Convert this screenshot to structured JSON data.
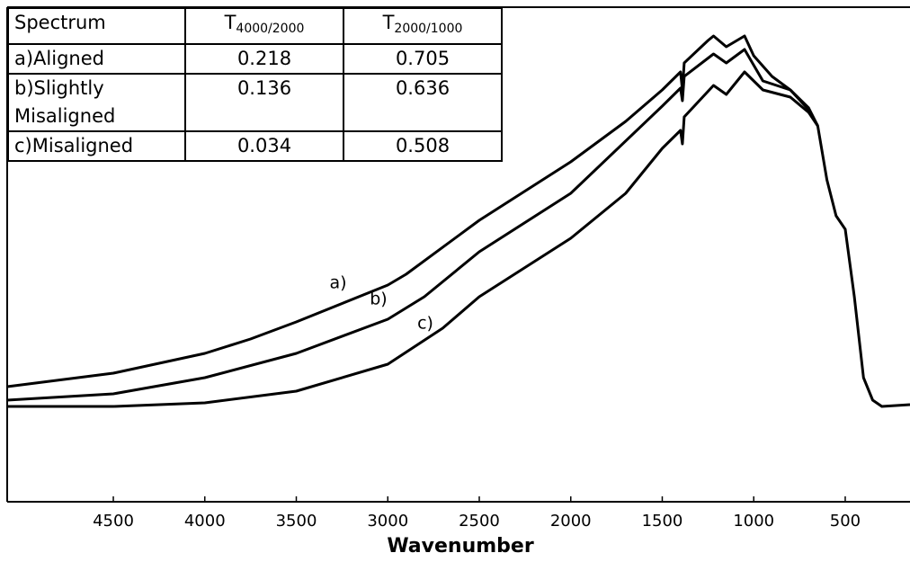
{
  "chart_data": {
    "type": "line",
    "x_label": "Wavenumber",
    "xlim": [
      5080,
      146
    ],
    "xticks": [
      4500,
      4000,
      3500,
      3000,
      2500,
      2000,
      1500,
      1000,
      500
    ],
    "ylim": [
      0,
      110
    ],
    "color": "#000000",
    "series": [
      {
        "name": "a)",
        "x": [
          5080,
          4500,
          4000,
          3750,
          3500,
          3000,
          2900,
          2500,
          2000,
          1700,
          1500,
          1400,
          1390,
          1380,
          1250,
          1220,
          1150,
          1050,
          1000,
          900,
          800,
          700,
          650,
          600,
          550,
          500,
          450,
          400,
          350,
          300,
          146
        ],
        "values": [
          25.6,
          28.6,
          33,
          36.2,
          40,
          48.2,
          50.6,
          62.6,
          75.6,
          84.6,
          91.6,
          95.6,
          91.6,
          97.6,
          102.6,
          103.6,
          101.2,
          103.6,
          99.2,
          94.6,
          91.6,
          87.6,
          83.6,
          71.6,
          63.6,
          60.6,
          45.6,
          27.6,
          22.6,
          21.2,
          21.6
        ]
      },
      {
        "name": "b)",
        "x": [
          5080,
          4500,
          4000,
          3500,
          3000,
          2800,
          2500,
          2000,
          1500,
          1400,
          1390,
          1380,
          1220,
          1150,
          1050,
          950,
          800,
          700,
          650
        ],
        "values": [
          22.6,
          24,
          27.6,
          33,
          40.6,
          45.6,
          55.6,
          68.6,
          88,
          92,
          89.2,
          94.6,
          99.6,
          97.6,
          100.6,
          93.6,
          91.6,
          87.2,
          83.6
        ]
      },
      {
        "name": "c)",
        "x": [
          5080,
          4500,
          4000,
          3500,
          3000,
          2700,
          2500,
          2000,
          1700,
          1500,
          1400,
          1390,
          1380,
          1220,
          1150,
          1050,
          950,
          800,
          700,
          650
        ],
        "values": [
          21.2,
          21.2,
          22,
          24.6,
          30.6,
          38.6,
          45.6,
          58.6,
          68.6,
          78.6,
          82.6,
          79.6,
          85.6,
          92.6,
          90.6,
          95.6,
          91.6,
          90,
          86.6,
          83.6
        ]
      }
    ],
    "table": {
      "header": [
        "Spectrum",
        {
          "main": "T",
          "sub": "4000/2000"
        },
        {
          "main": "T",
          "sub": "2000/1000"
        }
      ],
      "rows": [
        [
          "a)Aligned",
          0.218,
          0.705
        ],
        [
          "b)Slightly Misaligned",
          0.136,
          0.636
        ],
        [
          "c)Misaligned",
          0.034,
          0.508
        ]
      ]
    }
  }
}
